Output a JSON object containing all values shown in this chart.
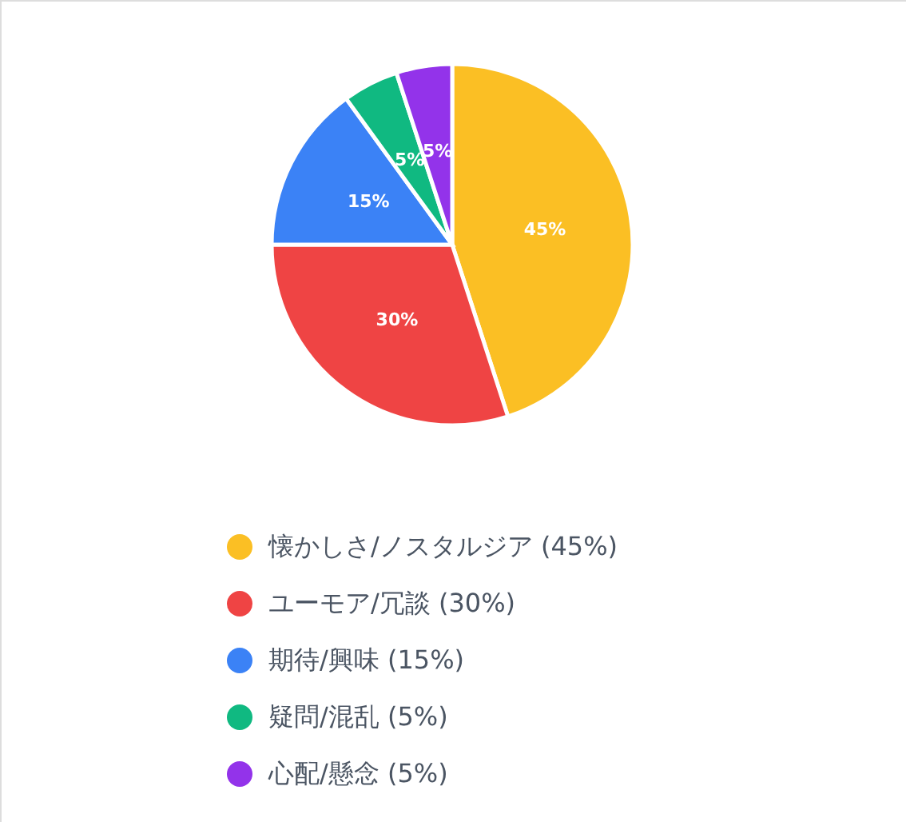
{
  "chart_data": {
    "type": "pie",
    "categories": [
      "懐かしさ/ノスタルジア (45%)",
      "ユーモア/冗談 (30%)",
      "期待/興味 (15%)",
      "疑問/混乱 (5%)",
      "心配/懸念 (5%)"
    ],
    "values": [
      45,
      30,
      15,
      5,
      5
    ],
    "colors": [
      "#fbbf24",
      "#ef4444",
      "#3b82f6",
      "#10b981",
      "#9333ea"
    ],
    "value_labels": [
      "45%",
      "30%",
      "15%",
      "5%",
      "5%"
    ],
    "legend": "bottom"
  }
}
